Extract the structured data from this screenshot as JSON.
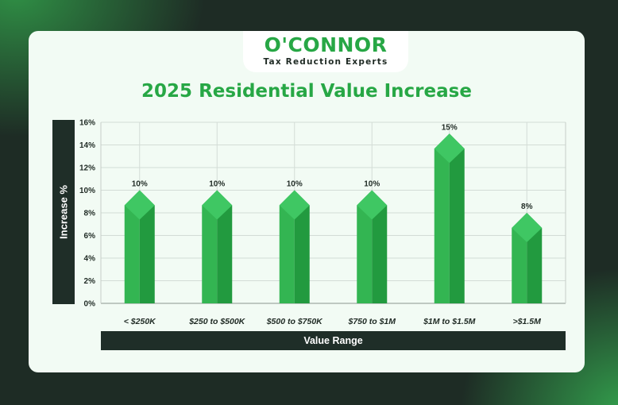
{
  "brand": {
    "name": "O'CONNOR",
    "tagline": "Tax Reduction Experts",
    "accent_color": "#27a745",
    "dark_color": "#1f2e28"
  },
  "chart_data": {
    "type": "bar",
    "title": "2025 Residential Value Increase",
    "xlabel": "Value Range",
    "ylabel": "Increase %",
    "categories": [
      "< $250K",
      "$250 to $500K",
      "$500 to $750K",
      "$750 to $1M",
      "$1M to $1.5M",
      ">$1.5M"
    ],
    "values": [
      10,
      10,
      10,
      10,
      15,
      8
    ],
    "data_labels": [
      "10%",
      "10%",
      "10%",
      "10%",
      "15%",
      "8%"
    ],
    "yticks": [
      "0%",
      "2%",
      "4%",
      "6%",
      "8%",
      "10%",
      "12%",
      "14%",
      "16%"
    ],
    "ylim": [
      0,
      16
    ],
    "grid": true,
    "bar_color": "#27a745"
  }
}
